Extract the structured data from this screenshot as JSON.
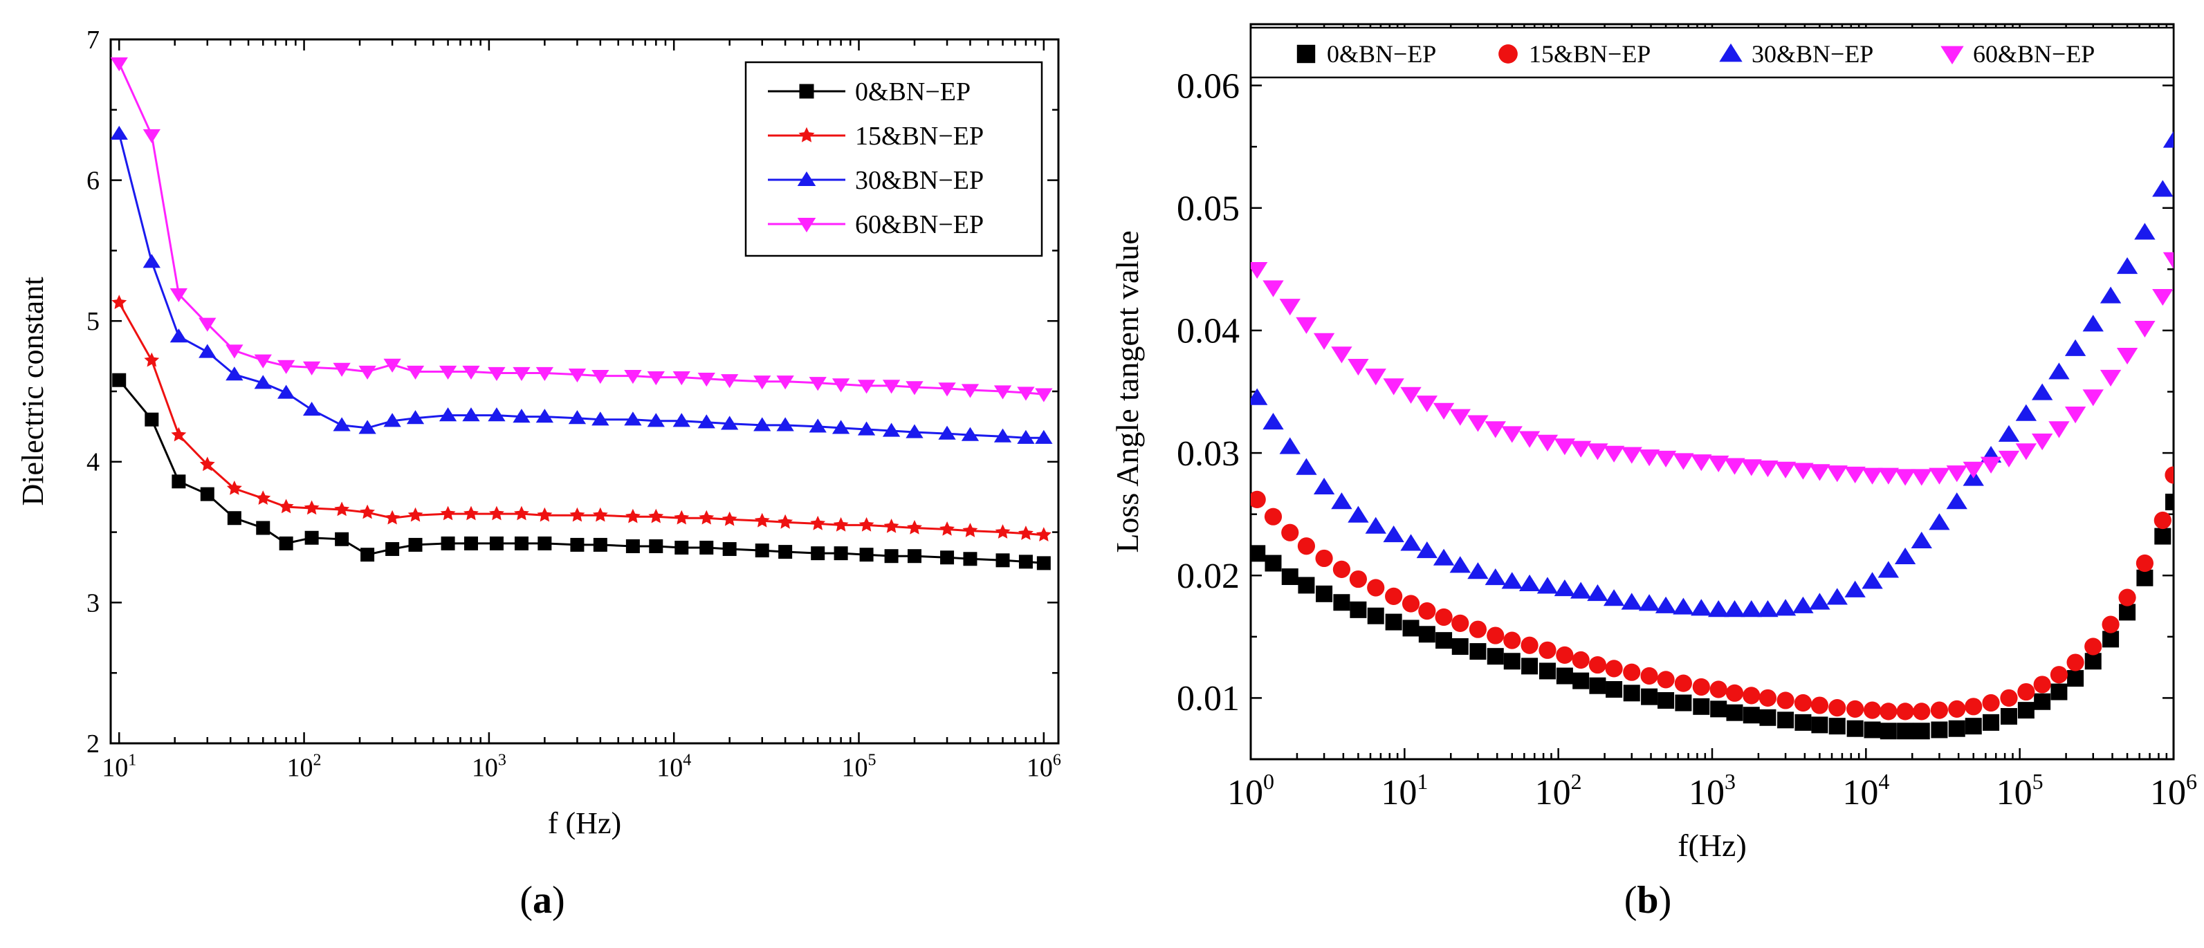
{
  "panels": [
    {
      "panel_label": "(a)",
      "panel_letter": "a",
      "chart_data": {
        "type": "line",
        "xscale": "log",
        "xlabel": "f (Hz)",
        "ylabel": "Dielectric constant",
        "xlim": [
          9,
          1200000
        ],
        "ylim": [
          2,
          7
        ],
        "xticks": [
          10,
          100,
          1000,
          10000,
          100000,
          1000000
        ],
        "xtick_labels": [
          {
            "base": "10",
            "exp": "1"
          },
          {
            "base": "10",
            "exp": "2"
          },
          {
            "base": "10",
            "exp": "3"
          },
          {
            "base": "10",
            "exp": "4"
          },
          {
            "base": "10",
            "exp": "5"
          },
          {
            "base": "10",
            "exp": "6"
          }
        ],
        "yticks": [
          2,
          3,
          4,
          5,
          6,
          7
        ],
        "ytick_labels": [
          "2",
          "3",
          "4",
          "5",
          "6",
          "7"
        ],
        "legend": "top-right",
        "x": [
          10,
          15,
          21,
          30,
          42,
          60,
          80,
          110,
          160,
          220,
          300,
          400,
          600,
          800,
          1100,
          1500,
          2000,
          3000,
          4000,
          6000,
          8000,
          11000,
          15000,
          20000,
          30000,
          40000,
          60000,
          80000,
          110000,
          150000,
          200000,
          300000,
          400000,
          600000,
          800000,
          1000000
        ],
        "series": [
          {
            "name": "0&BN−EP",
            "color": "#000000",
            "marker": "square",
            "values": [
              4.58,
              4.3,
              3.86,
              3.77,
              3.6,
              3.53,
              3.42,
              3.46,
              3.45,
              3.34,
              3.38,
              3.41,
              3.42,
              3.42,
              3.42,
              3.42,
              3.42,
              3.41,
              3.41,
              3.4,
              3.4,
              3.39,
              3.39,
              3.38,
              3.37,
              3.36,
              3.35,
              3.35,
              3.34,
              3.33,
              3.33,
              3.32,
              3.31,
              3.3,
              3.29,
              3.28
            ]
          },
          {
            "name": "15&BN−EP",
            "color": "#ee1111",
            "marker": "star",
            "values": [
              5.13,
              4.72,
              4.19,
              3.98,
              3.81,
              3.74,
              3.68,
              3.67,
              3.66,
              3.64,
              3.6,
              3.62,
              3.63,
              3.63,
              3.63,
              3.63,
              3.62,
              3.62,
              3.62,
              3.61,
              3.61,
              3.6,
              3.6,
              3.59,
              3.58,
              3.57,
              3.56,
              3.55,
              3.55,
              3.54,
              3.53,
              3.52,
              3.51,
              3.5,
              3.49,
              3.48
            ]
          },
          {
            "name": "30&BN−EP",
            "color": "#1a1aee",
            "marker": "triangle-up",
            "values": [
              6.33,
              5.42,
              4.89,
              4.78,
              4.62,
              4.56,
              4.49,
              4.37,
              4.26,
              4.24,
              4.29,
              4.31,
              4.33,
              4.33,
              4.33,
              4.32,
              4.32,
              4.31,
              4.3,
              4.3,
              4.29,
              4.29,
              4.28,
              4.27,
              4.26,
              4.26,
              4.25,
              4.24,
              4.23,
              4.22,
              4.21,
              4.2,
              4.19,
              4.18,
              4.17,
              4.17
            ]
          },
          {
            "name": "60&BN−EP",
            "color": "#ff22ff",
            "marker": "triangle-down",
            "values": [
              6.83,
              6.32,
              5.19,
              4.98,
              4.79,
              4.72,
              4.68,
              4.67,
              4.66,
              4.64,
              4.69,
              4.64,
              4.64,
              4.64,
              4.63,
              4.63,
              4.63,
              4.62,
              4.61,
              4.61,
              4.6,
              4.6,
              4.59,
              4.58,
              4.57,
              4.57,
              4.56,
              4.55,
              4.54,
              4.54,
              4.53,
              4.52,
              4.51,
              4.5,
              4.49,
              4.48
            ]
          }
        ]
      }
    },
    {
      "panel_label": "(b)",
      "panel_letter": "b",
      "chart_data": {
        "type": "scatter",
        "xscale": "log",
        "xlabel": "f(Hz)",
        "ylabel": "Loss Angle tangent value",
        "xlim": [
          1,
          1000000
        ],
        "ylim": [
          0.005,
          0.065
        ],
        "xticks": [
          1,
          10,
          100,
          1000,
          10000,
          100000,
          1000000
        ],
        "xtick_labels": [
          {
            "base": "10",
            "exp": "0"
          },
          {
            "base": "10",
            "exp": "1"
          },
          {
            "base": "10",
            "exp": "2"
          },
          {
            "base": "10",
            "exp": "3"
          },
          {
            "base": "10",
            "exp": "4"
          },
          {
            "base": "10",
            "exp": "5"
          },
          {
            "base": "10",
            "exp": "6"
          }
        ],
        "yticks": [
          0.01,
          0.02,
          0.03,
          0.04,
          0.05,
          0.06
        ],
        "ytick_labels": [
          "0.01",
          "0.02",
          "0.03",
          "0.04",
          "0.05",
          "0.06"
        ],
        "legend": "top",
        "x": [
          1.1,
          1.4,
          1.8,
          2.3,
          3,
          3.9,
          5,
          6.5,
          8.5,
          11,
          14,
          18,
          23,
          30,
          39,
          50,
          65,
          85,
          110,
          140,
          180,
          230,
          300,
          390,
          500,
          650,
          850,
          1100,
          1400,
          1800,
          2300,
          3000,
          3900,
          5000,
          6500,
          8500,
          11000,
          14000,
          18000,
          23000,
          30000,
          39000,
          50000,
          65000,
          85000,
          110000,
          140000,
          180000,
          230000,
          300000,
          390000,
          500000,
          650000,
          850000,
          1000000
        ],
        "series": [
          {
            "name": "0&BN−EP",
            "color": "#000000",
            "marker": "square",
            "values": [
              0.0218,
              0.021,
              0.0199,
              0.0192,
              0.0185,
              0.0178,
              0.0172,
              0.0167,
              0.0162,
              0.0157,
              0.0152,
              0.0147,
              0.0142,
              0.0138,
              0.0134,
              0.013,
              0.0126,
              0.0122,
              0.0118,
              0.0114,
              0.011,
              0.0107,
              0.0104,
              0.0101,
              0.0098,
              0.0096,
              0.0093,
              0.0091,
              0.0088,
              0.0086,
              0.0084,
              0.0082,
              0.008,
              0.0078,
              0.0077,
              0.0075,
              0.0074,
              0.0073,
              0.0073,
              0.0073,
              0.0074,
              0.0075,
              0.0077,
              0.008,
              0.0085,
              0.009,
              0.0097,
              0.0105,
              0.0116,
              0.013,
              0.0148,
              0.017,
              0.0198,
              0.0232,
              0.026
            ]
          },
          {
            "name": "15&BN−EP",
            "color": "#ee1111",
            "marker": "circle",
            "values": [
              0.0262,
              0.0248,
              0.0235,
              0.0224,
              0.0214,
              0.0205,
              0.0197,
              0.019,
              0.0183,
              0.0177,
              0.0171,
              0.0166,
              0.0161,
              0.0156,
              0.0151,
              0.0147,
              0.0143,
              0.0139,
              0.0135,
              0.0131,
              0.0127,
              0.0124,
              0.0121,
              0.0118,
              0.0115,
              0.0112,
              0.0109,
              0.0107,
              0.0104,
              0.0102,
              0.01,
              0.0098,
              0.0096,
              0.0094,
              0.0092,
              0.0091,
              0.009,
              0.0089,
              0.0089,
              0.0089,
              0.009,
              0.0091,
              0.0093,
              0.0096,
              0.01,
              0.0105,
              0.0111,
              0.0119,
              0.0129,
              0.0142,
              0.016,
              0.0182,
              0.021,
              0.0245,
              0.0282
            ]
          },
          {
            "name": "30&BN−EP",
            "color": "#1a1aee",
            "marker": "triangle-up",
            "values": [
              0.0345,
              0.0325,
              0.0305,
              0.0288,
              0.0272,
              0.026,
              0.0249,
              0.024,
              0.0233,
              0.0226,
              0.022,
              0.0214,
              0.0208,
              0.0203,
              0.0198,
              0.0195,
              0.0193,
              0.0191,
              0.0189,
              0.0187,
              0.0185,
              0.0181,
              0.0178,
              0.0177,
              0.0175,
              0.0174,
              0.0173,
              0.0172,
              0.0172,
              0.0172,
              0.0172,
              0.0173,
              0.0175,
              0.0178,
              0.0182,
              0.0188,
              0.0195,
              0.0204,
              0.0215,
              0.0228,
              0.0243,
              0.026,
              0.0279,
              0.0298,
              0.0315,
              0.0332,
              0.0349,
              0.0366,
              0.0385,
              0.0405,
              0.0428,
              0.0452,
              0.048,
              0.0515,
              0.0555
            ]
          },
          {
            "name": "60&BN−EP",
            "color": "#ff22ff",
            "marker": "triangle-down",
            "values": [
              0.045,
              0.0435,
              0.042,
              0.0405,
              0.0392,
              0.0381,
              0.0371,
              0.0363,
              0.0355,
              0.0348,
              0.0341,
              0.0335,
              0.033,
              0.0325,
              0.032,
              0.0316,
              0.0312,
              0.0309,
              0.0306,
              0.0304,
              0.0302,
              0.03,
              0.0299,
              0.0297,
              0.0296,
              0.0294,
              0.0293,
              0.0292,
              0.029,
              0.0289,
              0.0288,
              0.0287,
              0.0286,
              0.0285,
              0.0284,
              0.0283,
              0.0282,
              0.0282,
              0.0281,
              0.0281,
              0.0282,
              0.0284,
              0.0287,
              0.0291,
              0.0296,
              0.0302,
              0.031,
              0.032,
              0.0332,
              0.0346,
              0.0362,
              0.038,
              0.0402,
              0.0428,
              0.0458
            ]
          }
        ]
      }
    }
  ]
}
